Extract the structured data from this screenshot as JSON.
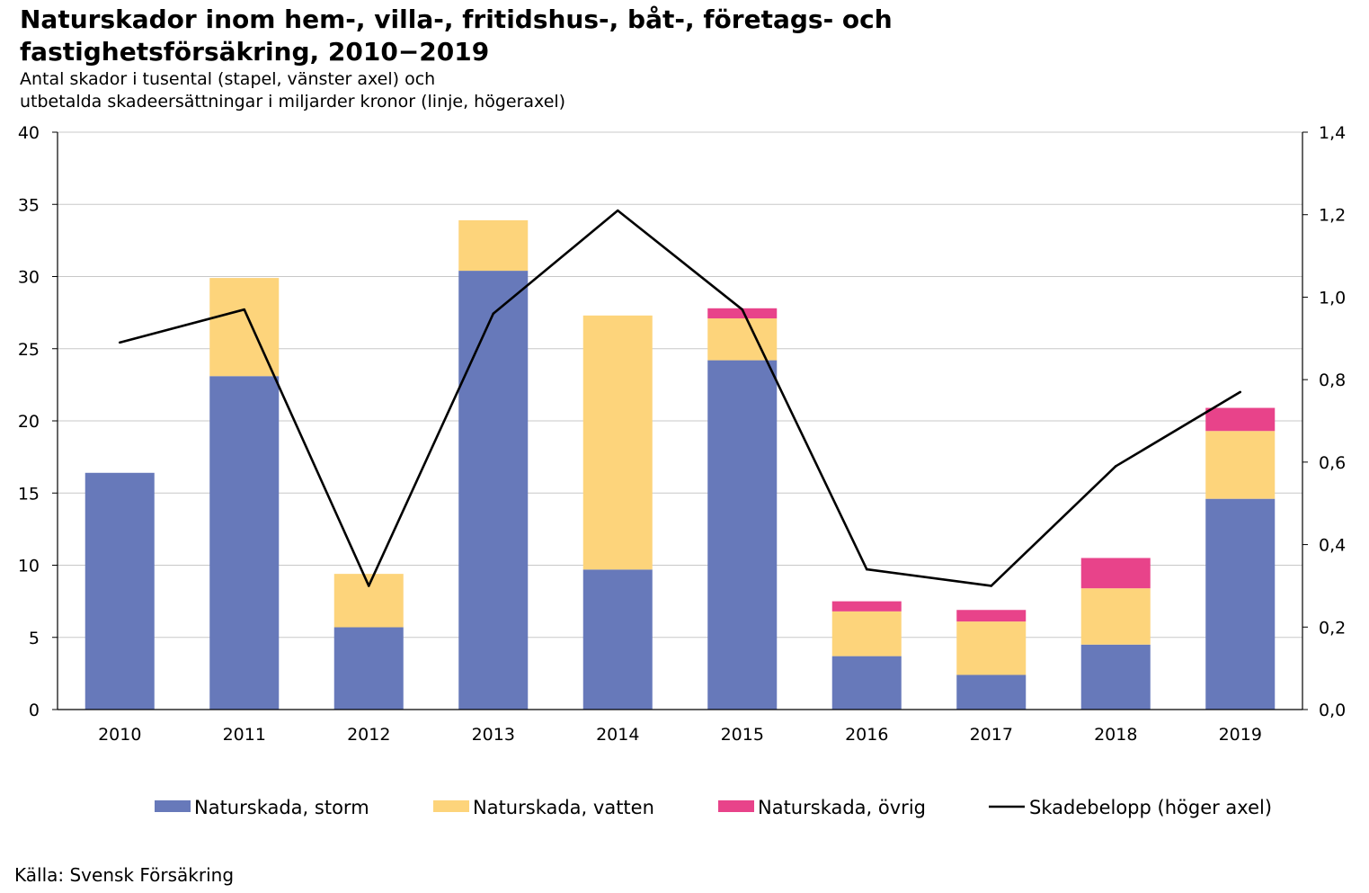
{
  "chart_data": {
    "type": "bar",
    "stacked": true,
    "title_line1": "Naturskador inom hem-, villa-, fritidshus-, båt-, företags- och",
    "title_line2": "fastighetsförsäkring, 2010−2019",
    "subtitle_line1": "Antal skador i tusental (stapel, vänster axel) och",
    "subtitle_line2": "utbetalda skadeersättningar i miljarder kronor (linje, högeraxel)",
    "categories": [
      "2010",
      "2011",
      "2012",
      "2013",
      "2014",
      "2015",
      "2016",
      "2017",
      "2018",
      "2019"
    ],
    "series": [
      {
        "name": "Naturskada, storm",
        "color": "#6779BA",
        "axis": "left",
        "values": [
          16.4,
          23.1,
          5.7,
          30.4,
          9.7,
          24.2,
          3.7,
          2.4,
          4.5,
          14.6
        ]
      },
      {
        "name": "Naturskada, vatten",
        "color": "#FDD47B",
        "axis": "left",
        "values": [
          0,
          6.8,
          3.7,
          3.5,
          17.6,
          2.9,
          3.1,
          3.7,
          3.9,
          4.7
        ]
      },
      {
        "name": "Naturskada, övrig",
        "color": "#E8438A",
        "axis": "left",
        "values": [
          0,
          0,
          0,
          0,
          0,
          0.7,
          0.7,
          0.8,
          2.1,
          1.6
        ]
      }
    ],
    "line_series": {
      "name": "Skadebelopp (höger axel)",
      "color": "#000000",
      "axis": "right",
      "values": [
        0.89,
        0.97,
        0.3,
        0.96,
        1.21,
        0.97,
        0.34,
        0.3,
        0.59,
        0.77
      ]
    },
    "y_left": {
      "min": 0,
      "max": 40,
      "step": 5,
      "ticks": [
        "0",
        "5",
        "10",
        "15",
        "20",
        "25",
        "30",
        "35",
        "40"
      ]
    },
    "y_right": {
      "min": 0,
      "max": 1.4,
      "step": 0.2,
      "ticks": [
        "0,0",
        "0,2",
        "0,4",
        "0,6",
        "0,8",
        "1,0",
        "1,2",
        "1,4"
      ]
    },
    "grid": true,
    "legend_position": "bottom"
  },
  "source_text": "Källa: Svensk Försäkring"
}
